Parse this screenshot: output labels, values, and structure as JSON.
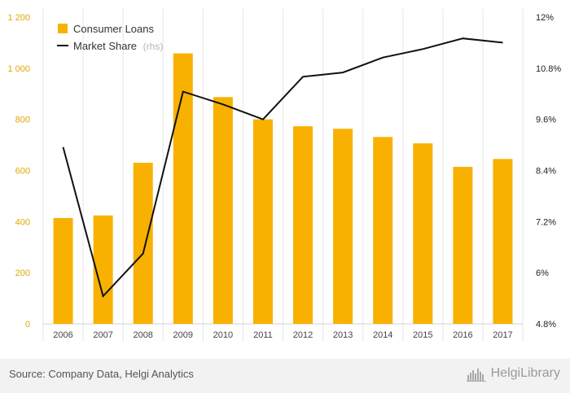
{
  "chart_data": {
    "type": "bar+line",
    "categories": [
      "2006",
      "2007",
      "2008",
      "2009",
      "2010",
      "2011",
      "2012",
      "2013",
      "2014",
      "2015",
      "2016",
      "2017"
    ],
    "series": [
      {
        "name": "Consumer Loans",
        "type": "bar",
        "axis": "left",
        "values": [
          414,
          424,
          630,
          1058,
          887,
          800,
          773,
          763,
          731,
          706,
          614,
          645
        ]
      },
      {
        "name": "Market Share",
        "type": "line",
        "axis": "right",
        "values": [
          8.95,
          5.45,
          6.45,
          10.25,
          9.95,
          9.6,
          10.6,
          10.7,
          11.05,
          11.25,
          11.5,
          11.4
        ]
      }
    ],
    "legend_suffix": "(rhs)",
    "left_axis": {
      "ylim": [
        0,
        1200
      ],
      "ticks": [
        "0",
        "200",
        "400",
        "600",
        "800",
        "1 000",
        "1 200"
      ]
    },
    "right_axis": {
      "ylim": [
        4.8,
        12
      ],
      "ticks": [
        "4.8%",
        "6%",
        "7.2%",
        "8.4%",
        "9.6%",
        "10.8%",
        "12%"
      ]
    },
    "grid": "vertical",
    "legend_position": "top-left",
    "colors": {
      "bar": "#f8b100",
      "line": "#111111",
      "left_axis": "#e0a800"
    }
  },
  "footer": {
    "source": "Source: Company Data, Helgi Analytics",
    "brand": "HelgiLibrary"
  }
}
